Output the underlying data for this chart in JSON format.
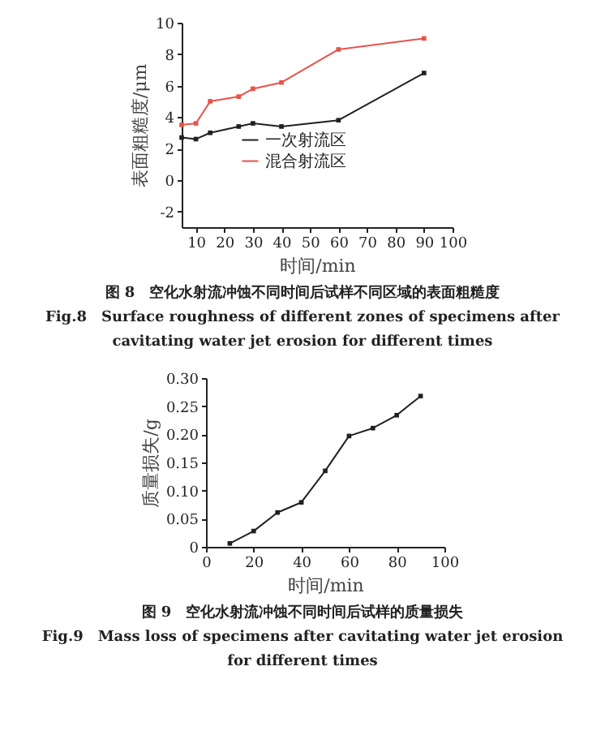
{
  "chart_data": [
    {
      "type": "line",
      "xlabel": "时间/min",
      "ylabel": "表面粗糙度/μm",
      "xlim": [
        5,
        100
      ],
      "xticks": [
        10,
        20,
        30,
        40,
        50,
        60,
        70,
        80,
        90,
        100
      ],
      "ylim": [
        -3,
        10
      ],
      "yticks": [
        -2,
        0,
        2,
        4,
        6,
        8,
        10
      ],
      "x": [
        5,
        10,
        15,
        25,
        30,
        40,
        60,
        90
      ],
      "marker": "square",
      "legend": "left",
      "grid": false,
      "series": [
        {
          "name": "一次射流区",
          "color": "#231f20",
          "values": [
            2.7,
            2.6,
            3.0,
            3.4,
            3.6,
            3.4,
            3.8,
            6.8
          ]
        },
        {
          "name": "混合射流区",
          "color": "#e8524a",
          "values": [
            3.5,
            3.6,
            5.0,
            5.3,
            5.8,
            6.2,
            8.3,
            9.0
          ]
        }
      ],
      "annotations": [
        "图 8　空化水射流冲蚀不同时间后试样不同区域的表面粗糙度",
        "Fig.8　Surface roughness of different zones of specimens after cavitating water jet erosion for different times"
      ]
    },
    {
      "type": "line",
      "xlabel": "时间/min",
      "ylabel": "质量损失/g",
      "xlim": [
        0,
        100
      ],
      "xticks": [
        0,
        20,
        40,
        60,
        80,
        100
      ],
      "ylim": [
        0,
        0.3
      ],
      "yticks": [
        0,
        0.05,
        {
          "value": 0.1,
          "label": "0.10"
        },
        0.15,
        {
          "value": 0.2,
          "label": "0.20"
        },
        0.25,
        {
          "value": 0.3,
          "label": "0.30"
        }
      ],
      "x": [
        10,
        20,
        30,
        40,
        50,
        60,
        70,
        80,
        90
      ],
      "marker": "square",
      "grid": false,
      "series": [
        {
          "color": "#231f20",
          "values": [
            0.006,
            0.028,
            0.061,
            0.079,
            0.135,
            0.197,
            0.211,
            0.234,
            0.268
          ]
        }
      ],
      "annotations": [
        "图 9　空化水射流冲蚀不同时间后试样的质量损失",
        "Fig.9　Mass loss of specimens after cavitating water jet erosion for different times"
      ]
    }
  ]
}
